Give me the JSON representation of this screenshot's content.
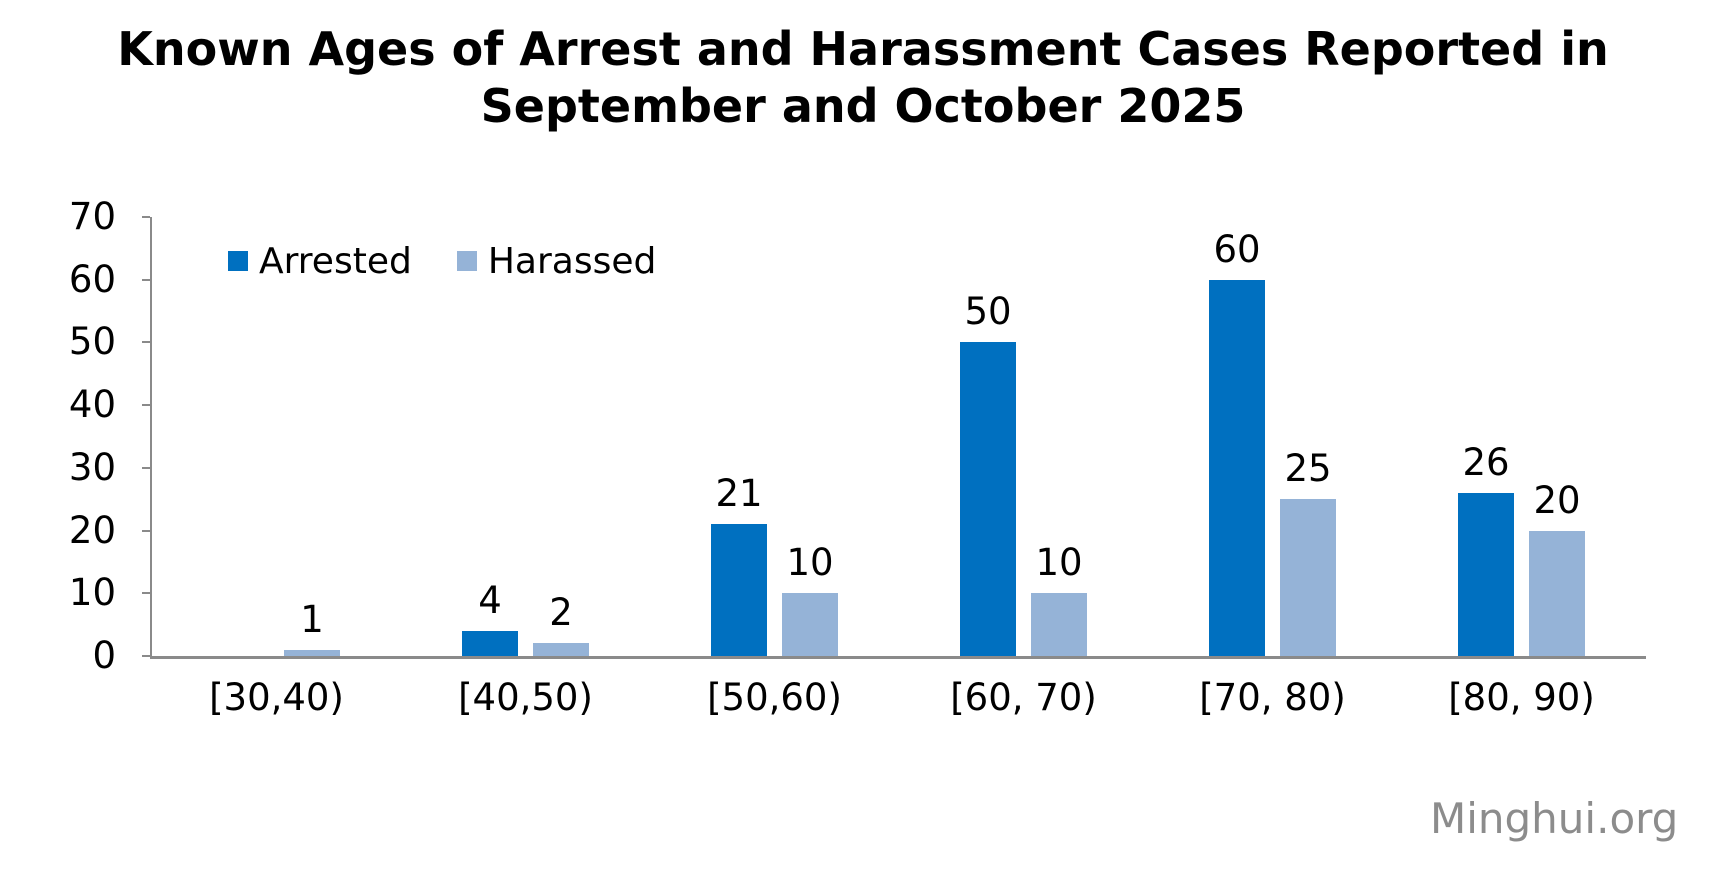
{
  "title_lines": [
    "Known Ages of Arrest and Harassment Cases Reported in",
    "September and October 2025"
  ],
  "watermark": "Minghui.org",
  "chart_data": {
    "type": "bar",
    "title": "Known Ages of Arrest and Harassment Cases Reported in September and October 2025",
    "categories": [
      "[30,40)",
      "[40,50)",
      "[50,60)",
      "[60, 70)",
      "[70, 80)",
      "[80, 90)"
    ],
    "series": [
      {
        "name": "Arrested",
        "color": "#0070C0",
        "values": [
          0,
          4,
          21,
          50,
          60,
          26
        ]
      },
      {
        "name": "Harassed",
        "color": "#95B3D7",
        "values": [
          1,
          2,
          10,
          10,
          25,
          20
        ]
      }
    ],
    "ylim": [
      0,
      70
    ],
    "yticks": [
      0,
      10,
      20,
      30,
      40,
      50,
      60,
      70
    ],
    "grid": false,
    "legend_position": "top-left-inside",
    "data_labels": "outside-end",
    "zero_values_unlabeled": true,
    "axis_color": "#8A8A8A",
    "text_color": "#000000",
    "watermark_color": "#8C8C8C"
  }
}
